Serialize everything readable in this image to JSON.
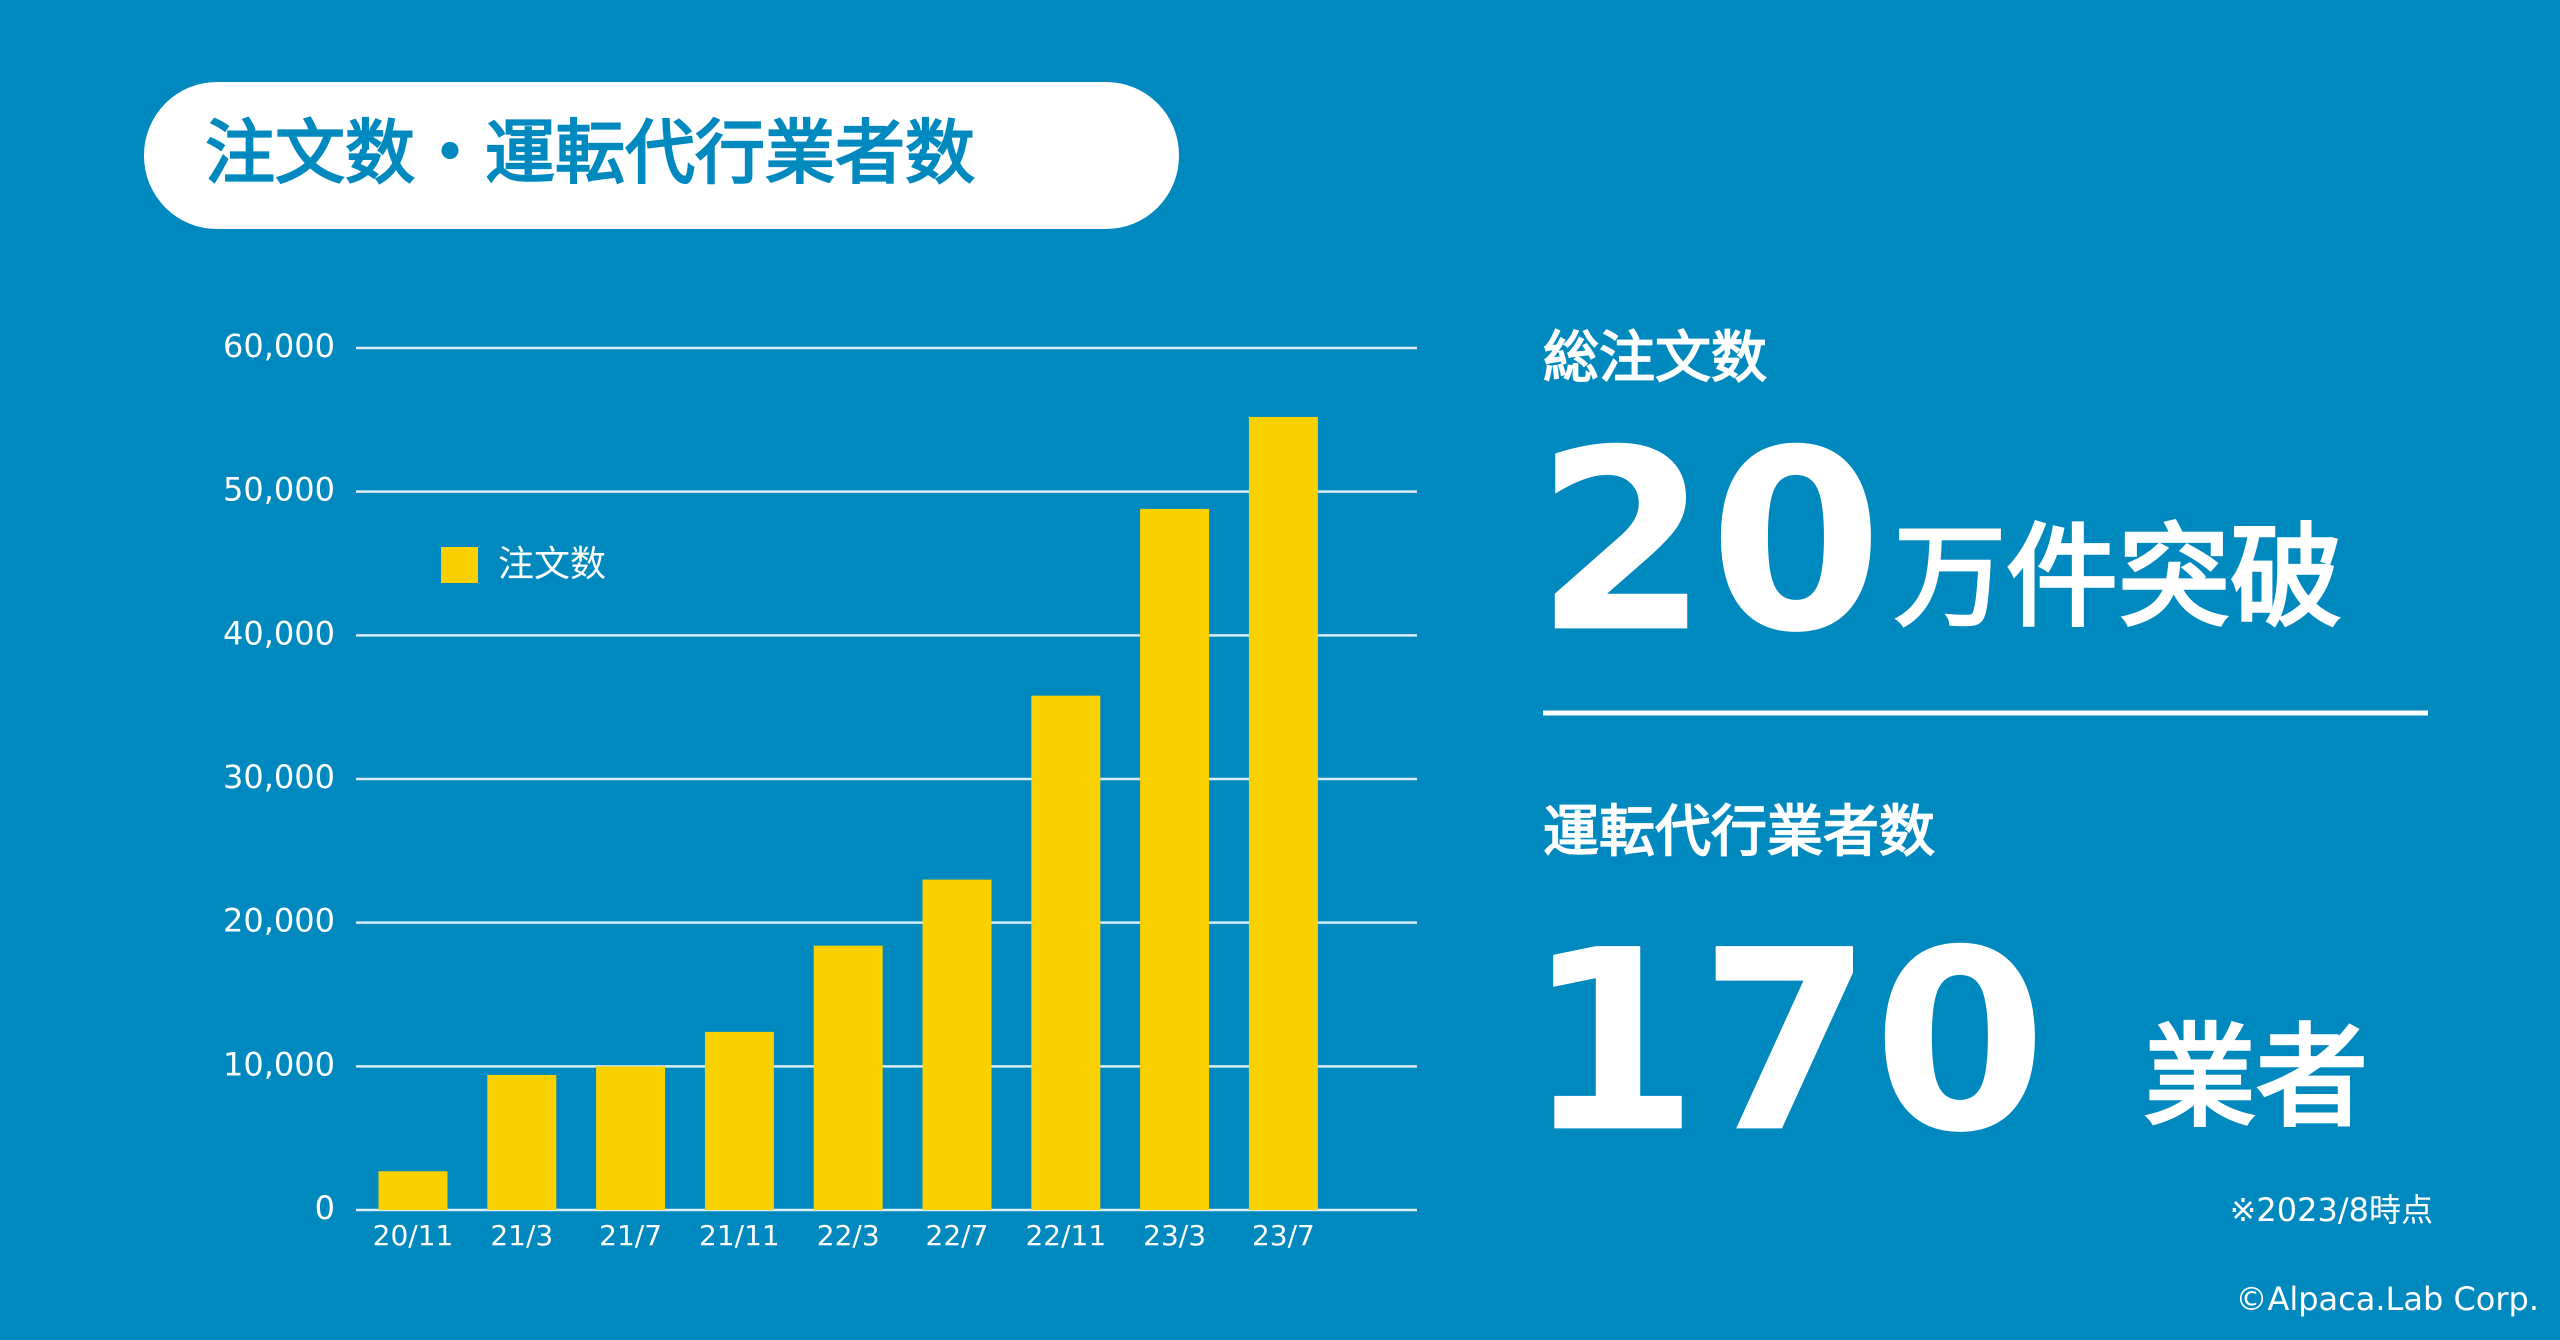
{
  "title": "注文数・運転代行業者数",
  "chart_data": {
    "type": "bar",
    "categories": [
      "20/11",
      "21/3",
      "21/7",
      "21/11",
      "22/3",
      "22/7",
      "22/11",
      "23/3",
      "23/7"
    ],
    "series": [
      {
        "name": "注文数",
        "color": "#f9d000",
        "values": [
          2700,
          9400,
          10000,
          12400,
          18400,
          23000,
          35800,
          48800,
          55200
        ]
      }
    ],
    "ylim": [
      0,
      60000
    ],
    "yticks": [
      0,
      {
        "value": 10000,
        "label": "10,000"
      },
      {
        "value": 20000,
        "label": "20,000"
      },
      {
        "value": 30000,
        "label": "30,000"
      },
      {
        "value": 40000,
        "label": "40,000"
      },
      {
        "value": 50000,
        "label": "50,000"
      },
      {
        "value": 60000,
        "label": "60,000"
      }
    ],
    "grid": true
  },
  "stats": {
    "orders_label": "総注文数",
    "orders_number": "20",
    "orders_unit": "万件突破",
    "operators_label": "運転代行業者数",
    "operators_number": "170",
    "operators_unit": "業者",
    "note": "※2023/8時点"
  },
  "copyright": "©Alpaca.Lab Corp."
}
